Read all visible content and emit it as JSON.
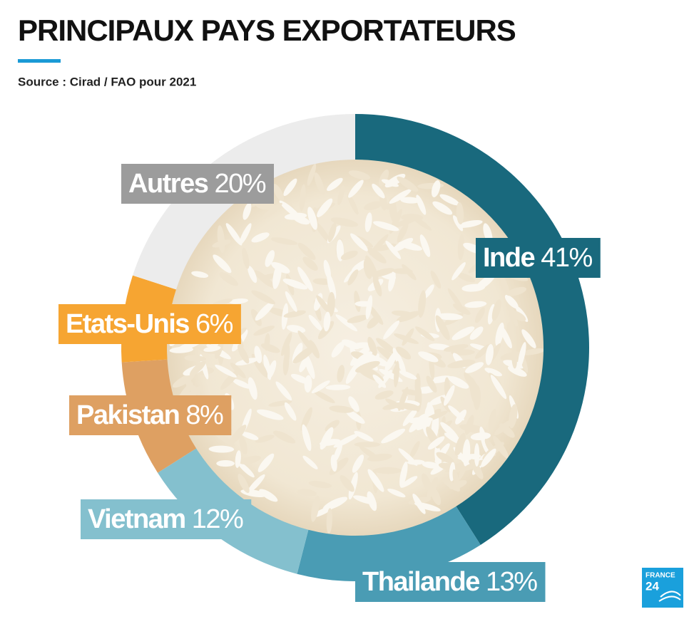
{
  "chart_data": {
    "type": "donut",
    "title": "PRINCIPAUX PAYS EXPORTATEURS",
    "subtitle": "Source : Cirad / FAO pour 2021",
    "categories": [
      "Inde",
      "Thailande",
      "Vietnam",
      "Pakistan",
      "Etats-Unis",
      "Autres"
    ],
    "values": [
      41,
      13,
      12,
      8,
      6,
      20
    ],
    "value_labels": [
      "41%",
      "13%",
      "12%",
      "8%",
      "6%",
      "20%"
    ],
    "colors": [
      "#19697d",
      "#4a9cb4",
      "#84c0ce",
      "#dea062",
      "#f6a532",
      "#ececec"
    ],
    "label_colors": [
      "#19697d",
      "#4a9cb4",
      "#84c0ce",
      "#dea062",
      "#f6a532",
      "#9c9c9c"
    ]
  },
  "logo": {
    "line1": "FRANCE",
    "line2": "24"
  }
}
